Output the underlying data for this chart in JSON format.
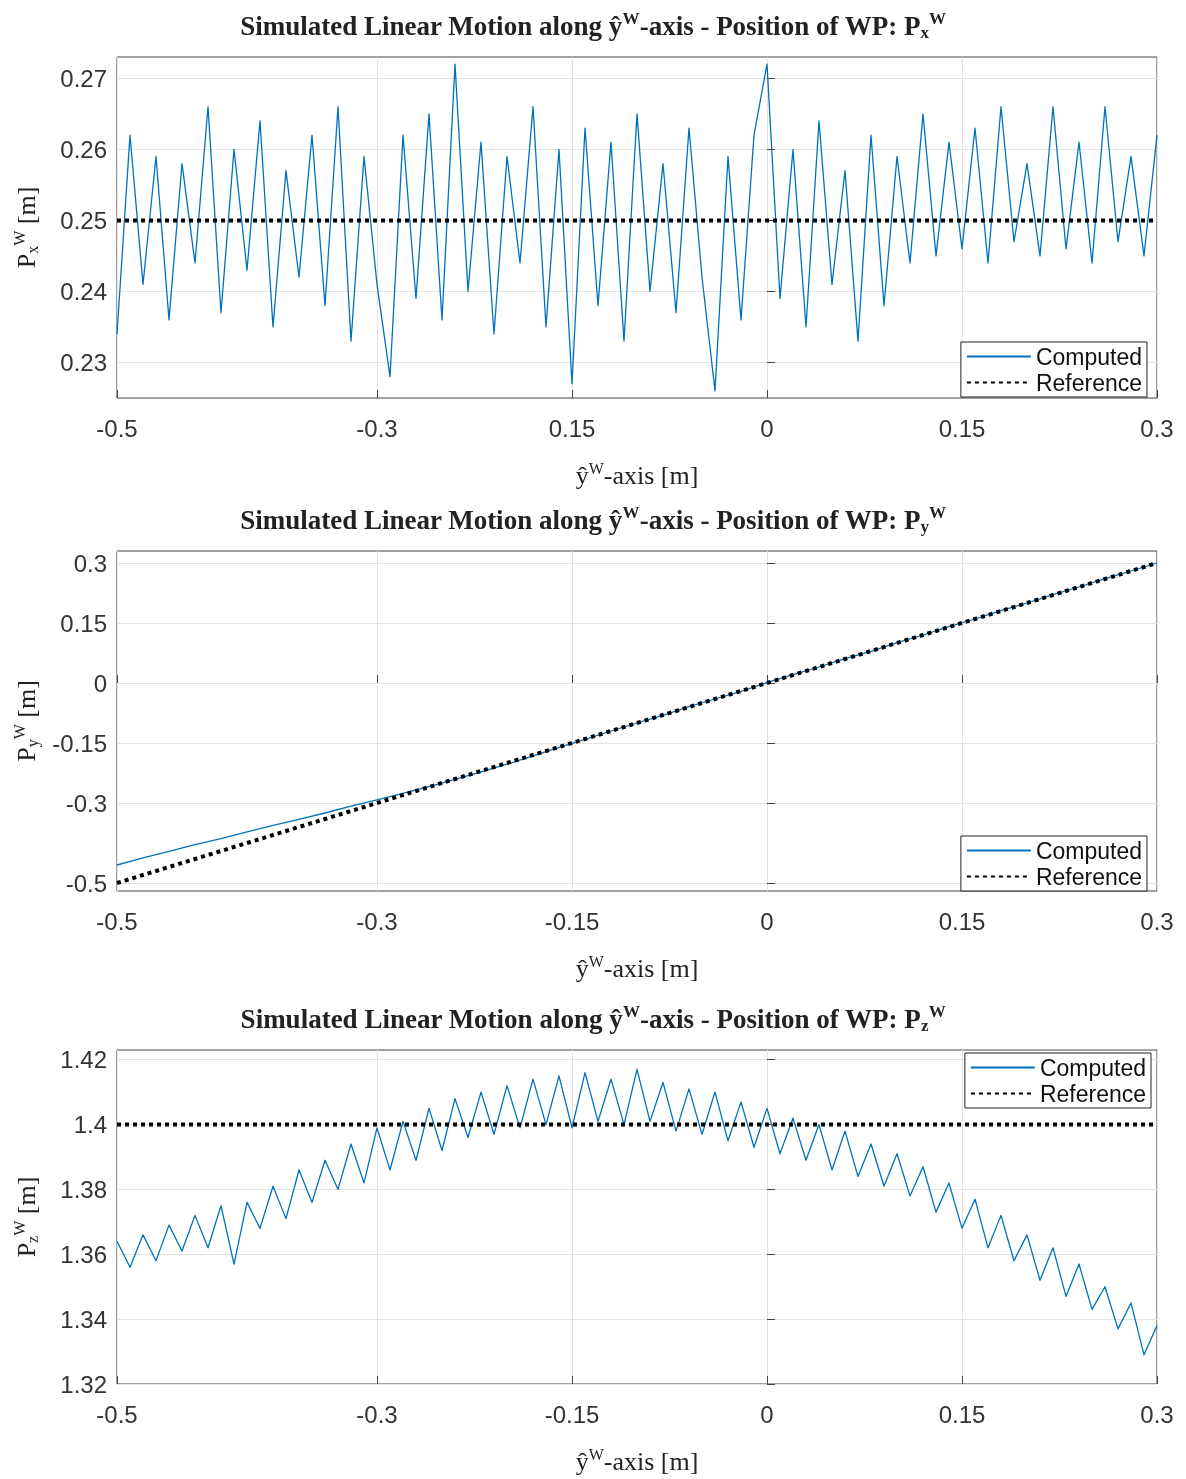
{
  "chart_data": [
    {
      "type": "line",
      "title": "Simulated Linear Motion along ŷ$^{W}$-axis - Position of WP: P$_{x}$$^{W}$",
      "xlabel": "ŷ$^{W}$-axis [m]",
      "ylabel": "P$_{x}$$^{W}$ [m]",
      "x": [
        -0.5,
        -0.49,
        -0.48,
        -0.47,
        -0.46,
        -0.45,
        -0.44,
        -0.43,
        -0.42,
        -0.41,
        -0.4,
        -0.39,
        -0.38,
        -0.37,
        -0.36,
        -0.35,
        -0.34,
        -0.33,
        -0.32,
        -0.31,
        -0.3,
        -0.29,
        -0.28,
        -0.27,
        -0.26,
        -0.25,
        -0.24,
        -0.23,
        -0.22,
        -0.21,
        -0.2,
        -0.19,
        -0.18,
        -0.17,
        -0.16,
        -0.15,
        -0.14,
        -0.13,
        -0.12,
        -0.11,
        -0.1,
        -0.09,
        -0.08,
        -0.07,
        -0.06,
        -0.05,
        -0.04,
        -0.03,
        -0.02,
        -0.01,
        0,
        0.01,
        0.02,
        0.03,
        0.04,
        0.05,
        0.06,
        0.07,
        0.08,
        0.09,
        0.1,
        0.11,
        0.12,
        0.13,
        0.14,
        0.15,
        0.16,
        0.17,
        0.18,
        0.19,
        0.2,
        0.21,
        0.22,
        0.23,
        0.24,
        0.25,
        0.26,
        0.27,
        0.28,
        0.29,
        0.3
      ],
      "series": [
        {
          "name": "Computed",
          "color": "#0072bd",
          "line_style": "solid",
          "values": [
            0.234,
            0.262,
            0.241,
            0.259,
            0.236,
            0.258,
            0.244,
            0.266,
            0.237,
            0.26,
            0.243,
            0.264,
            0.235,
            0.257,
            0.242,
            0.262,
            0.238,
            0.266,
            0.233,
            0.259,
            0.241,
            0.228,
            0.262,
            0.239,
            0.265,
            0.236,
            0.272,
            0.24,
            0.261,
            0.234,
            0.259,
            0.244,
            0.266,
            0.235,
            0.26,
            0.227,
            0.263,
            0.238,
            0.261,
            0.233,
            0.265,
            0.24,
            0.258,
            0.237,
            0.263,
            0.242,
            0.226,
            0.259,
            0.236,
            0.262,
            0.272,
            0.239,
            0.26,
            0.235,
            0.264,
            0.241,
            0.257,
            0.233,
            0.262,
            0.238,
            0.259,
            0.244,
            0.265,
            0.245,
            0.261,
            0.246,
            0.263,
            0.244,
            0.266,
            0.247,
            0.258,
            0.245,
            0.266,
            0.246,
            0.261,
            0.244,
            0.266,
            0.247,
            0.259,
            0.245,
            0.262
          ]
        },
        {
          "name": "Reference",
          "color": "#000000",
          "line_style": "dotted",
          "values": [
            0.25,
            0.25,
            0.25,
            0.25,
            0.25,
            0.25,
            0.25,
            0.25,
            0.25,
            0.25,
            0.25,
            0.25,
            0.25,
            0.25,
            0.25,
            0.25,
            0.25,
            0.25,
            0.25,
            0.25,
            0.25,
            0.25,
            0.25,
            0.25,
            0.25,
            0.25,
            0.25,
            0.25,
            0.25,
            0.25,
            0.25,
            0.25,
            0.25,
            0.25,
            0.25,
            0.25,
            0.25,
            0.25,
            0.25,
            0.25,
            0.25,
            0.25,
            0.25,
            0.25,
            0.25,
            0.25,
            0.25,
            0.25,
            0.25,
            0.25,
            0.25,
            0.25,
            0.25,
            0.25,
            0.25,
            0.25,
            0.25,
            0.25,
            0.25,
            0.25,
            0.25,
            0.25,
            0.25,
            0.25,
            0.25,
            0.25,
            0.25,
            0.25,
            0.25,
            0.25,
            0.25,
            0.25,
            0.25,
            0.25,
            0.25,
            0.25,
            0.25,
            0.25,
            0.25,
            0.25,
            0.25
          ]
        }
      ],
      "xlim": [
        -0.5,
        0.3
      ],
      "xticks": [
        -0.5,
        -0.3,
        {
          "value": -0.15,
          "label": "0.15"
        },
        0,
        0.15,
        0.3
      ],
      "ylim": [
        0.225,
        0.273
      ],
      "yticks": [
        0.23,
        0.24,
        0.25,
        0.26,
        0.27
      ],
      "grid": true,
      "legend": "bottom right",
      "marker": "none"
    },
    {
      "type": "line",
      "title": "Simulated Linear Motion along ŷ$^{W}$-axis - Position of WP: P$_{y}$$^{W}$",
      "xlabel": "ŷ$^{W}$-axis [m]",
      "ylabel": "P$_{y}$$^{W}$ [m]",
      "x": [
        -0.5,
        -0.48,
        -0.46,
        -0.44,
        -0.42,
        -0.4,
        -0.38,
        -0.36,
        -0.34,
        -0.32,
        -0.3,
        -0.28,
        -0.26,
        -0.24,
        -0.22,
        -0.2,
        -0.18,
        -0.16,
        -0.14,
        -0.12,
        -0.1,
        -0.08,
        -0.06,
        -0.04,
        -0.02,
        0,
        0.02,
        0.04,
        0.06,
        0.08,
        0.1,
        0.12,
        0.14,
        0.16,
        0.18,
        0.2,
        0.22,
        0.24,
        0.26,
        0.28,
        0.3
      ],
      "series": [
        {
          "name": "Computed",
          "color": "#0072bd",
          "line_style": "solid",
          "values": [
            -0.455,
            -0.437,
            -0.421,
            -0.404,
            -0.389,
            -0.372,
            -0.356,
            -0.341,
            -0.325,
            -0.308,
            -0.292,
            -0.276,
            -0.259,
            -0.241,
            -0.222,
            -0.203,
            -0.182,
            -0.161,
            -0.141,
            -0.12,
            -0.1,
            -0.081,
            -0.059,
            -0.04,
            -0.021,
            0.001,
            0.021,
            0.04,
            0.061,
            0.079,
            0.101,
            0.12,
            0.141,
            0.16,
            0.181,
            0.2,
            0.221,
            0.24,
            0.261,
            0.28,
            0.3
          ]
        },
        {
          "name": "Reference",
          "color": "#000000",
          "line_style": "dotted",
          "values": [
            -0.5,
            -0.48,
            -0.46,
            -0.44,
            -0.42,
            -0.4,
            -0.38,
            -0.36,
            -0.34,
            -0.32,
            -0.3,
            -0.28,
            -0.26,
            -0.24,
            -0.22,
            -0.2,
            -0.18,
            -0.16,
            -0.14,
            -0.12,
            -0.1,
            -0.08,
            -0.06,
            -0.04,
            -0.02,
            0,
            0.02,
            0.04,
            0.06,
            0.08,
            0.1,
            0.12,
            0.14,
            0.16,
            0.18,
            0.2,
            0.22,
            0.24,
            0.26,
            0.28,
            0.3
          ]
        }
      ],
      "xlim": [
        -0.5,
        0.3
      ],
      "xticks": [
        -0.5,
        -0.3,
        -0.15,
        0,
        0.15,
        0.3
      ],
      "ylim": [
        -0.52,
        0.33
      ],
      "yticks": [
        -0.5,
        -0.3,
        -0.15,
        0,
        0.15,
        0.3
      ],
      "grid": true,
      "legend": "bottom right",
      "marker": "none"
    },
    {
      "type": "line",
      "title": "Simulated Linear Motion along ŷ$^{W}$-axis - Position of WP: P$_{z}$$^{W}$",
      "xlabel": "ŷ$^{W}$-axis [m]",
      "ylabel": "P$_{z}$$^{W}$ [m]",
      "x": [
        -0.5,
        -0.49,
        -0.48,
        -0.47,
        -0.46,
        -0.45,
        -0.44,
        -0.43,
        -0.42,
        -0.41,
        -0.4,
        -0.39,
        -0.38,
        -0.37,
        -0.36,
        -0.35,
        -0.34,
        -0.33,
        -0.32,
        -0.31,
        -0.3,
        -0.29,
        -0.28,
        -0.27,
        -0.26,
        -0.25,
        -0.24,
        -0.23,
        -0.22,
        -0.21,
        -0.2,
        -0.19,
        -0.18,
        -0.17,
        -0.16,
        -0.15,
        -0.14,
        -0.13,
        -0.12,
        -0.11,
        -0.1,
        -0.09,
        -0.08,
        -0.07,
        -0.06,
        -0.05,
        -0.04,
        -0.03,
        -0.02,
        -0.01,
        0,
        0.01,
        0.02,
        0.03,
        0.04,
        0.05,
        0.06,
        0.07,
        0.08,
        0.09,
        0.1,
        0.11,
        0.12,
        0.13,
        0.14,
        0.15,
        0.16,
        0.17,
        0.18,
        0.19,
        0.2,
        0.21,
        0.22,
        0.23,
        0.24,
        0.25,
        0.26,
        0.27,
        0.28,
        0.29,
        0.3
      ],
      "series": [
        {
          "name": "Computed",
          "color": "#0072bd",
          "line_style": "solid",
          "values": [
            1.364,
            1.356,
            1.366,
            1.358,
            1.369,
            1.361,
            1.372,
            1.362,
            1.375,
            1.357,
            1.376,
            1.368,
            1.381,
            1.371,
            1.386,
            1.376,
            1.389,
            1.38,
            1.394,
            1.382,
            1.399,
            1.386,
            1.401,
            1.389,
            1.405,
            1.392,
            1.408,
            1.396,
            1.41,
            1.397,
            1.412,
            1.399,
            1.414,
            1.4,
            1.415,
            1.399,
            1.416,
            1.401,
            1.414,
            1.4,
            1.417,
            1.401,
            1.413,
            1.398,
            1.411,
            1.397,
            1.41,
            1.395,
            1.407,
            1.393,
            1.405,
            1.391,
            1.402,
            1.389,
            1.4,
            1.386,
            1.398,
            1.384,
            1.394,
            1.381,
            1.391,
            1.378,
            1.387,
            1.373,
            1.382,
            1.368,
            1.377,
            1.362,
            1.372,
            1.358,
            1.366,
            1.352,
            1.362,
            1.347,
            1.357,
            1.343,
            1.35,
            1.337,
            1.345,
            1.329,
            1.338
          ]
        },
        {
          "name": "Reference",
          "color": "#000000",
          "line_style": "dotted",
          "values": [
            1.4,
            1.4,
            1.4,
            1.4,
            1.4,
            1.4,
            1.4,
            1.4,
            1.4,
            1.4,
            1.4,
            1.4,
            1.4,
            1.4,
            1.4,
            1.4,
            1.4,
            1.4,
            1.4,
            1.4,
            1.4,
            1.4,
            1.4,
            1.4,
            1.4,
            1.4,
            1.4,
            1.4,
            1.4,
            1.4,
            1.4,
            1.4,
            1.4,
            1.4,
            1.4,
            1.4,
            1.4,
            1.4,
            1.4,
            1.4,
            1.4,
            1.4,
            1.4,
            1.4,
            1.4,
            1.4,
            1.4,
            1.4,
            1.4,
            1.4,
            1.4,
            1.4,
            1.4,
            1.4,
            1.4,
            1.4,
            1.4,
            1.4,
            1.4,
            1.4,
            1.4,
            1.4,
            1.4,
            1.4,
            1.4,
            1.4,
            1.4,
            1.4,
            1.4,
            1.4,
            1.4,
            1.4,
            1.4,
            1.4,
            1.4,
            1.4,
            1.4,
            1.4,
            1.4,
            1.4,
            1.4
          ]
        }
      ],
      "xlim": [
        -0.5,
        0.3
      ],
      "xticks": [
        -0.5,
        -0.3,
        -0.15,
        0,
        0.15,
        0.3
      ],
      "ylim": [
        1.32,
        1.423
      ],
      "yticks": [
        1.32,
        1.34,
        1.36,
        1.38,
        1.4,
        1.42
      ],
      "grid": true,
      "legend": "top right",
      "marker": "none"
    }
  ]
}
